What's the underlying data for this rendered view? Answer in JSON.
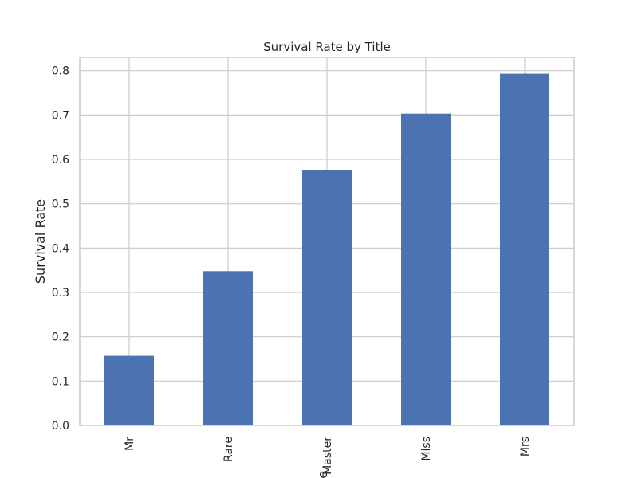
{
  "chart_data": {
    "type": "bar",
    "title": "Survival Rate by Title",
    "xlabel": "Title",
    "ylabel": "Survival Rate",
    "categories": [
      "Mr",
      "Rare",
      "Master",
      "Miss",
      "Mrs"
    ],
    "values": [
      0.157,
      0.348,
      0.575,
      0.703,
      0.793
    ],
    "ylim": [
      0,
      0.83
    ],
    "yticks": [
      0.0,
      0.1,
      0.2,
      0.3,
      0.4,
      0.5,
      0.6,
      0.7,
      0.8
    ],
    "ytick_labels": [
      "0.0",
      "0.1",
      "0.2",
      "0.3",
      "0.4",
      "0.5",
      "0.6",
      "0.7",
      "0.8"
    ],
    "grid": true,
    "legend": "none",
    "colors": {
      "bar": "#4c72b0",
      "grid": "#cccccc",
      "axes_edge": "#cccccc",
      "text": "#262626",
      "background": "#ffffff"
    }
  }
}
